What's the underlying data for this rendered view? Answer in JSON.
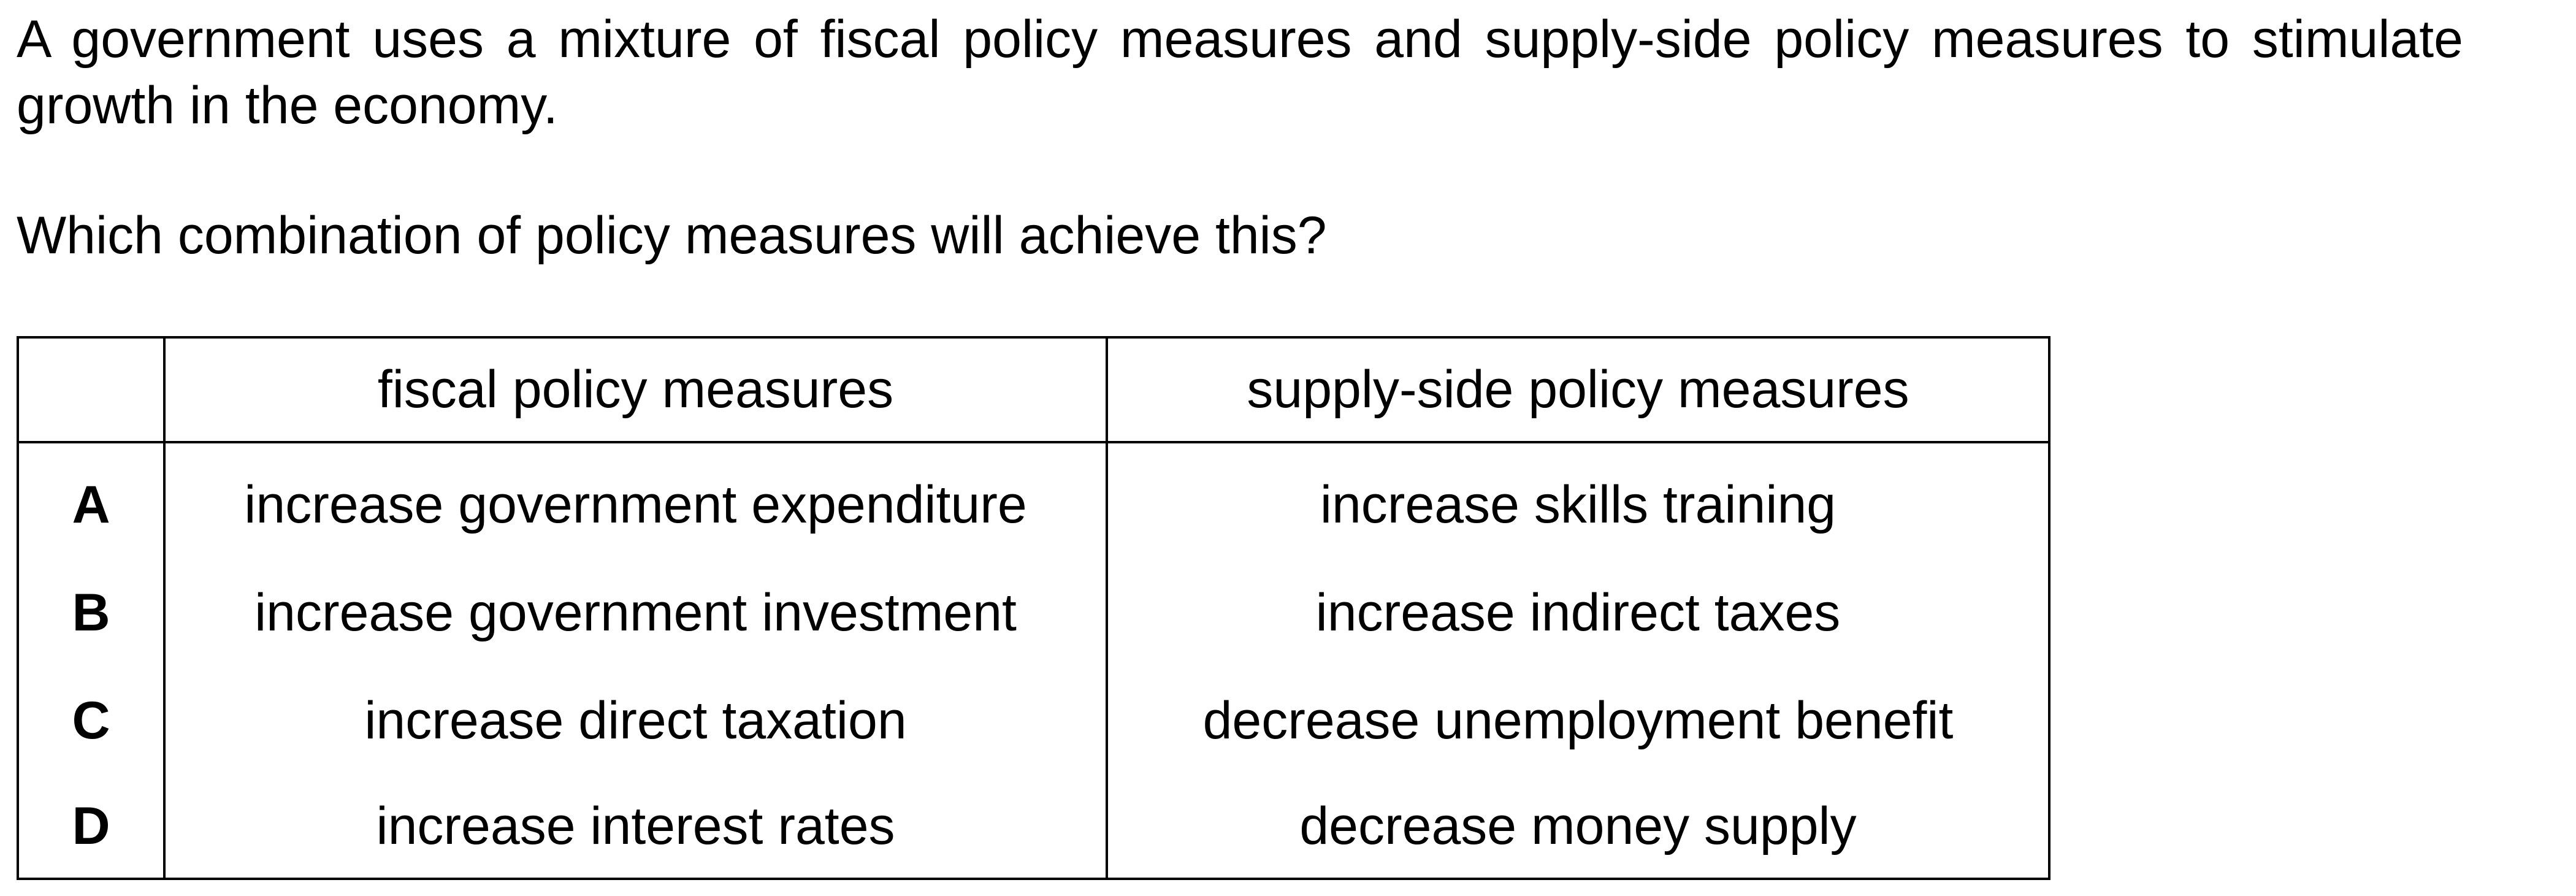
{
  "question": {
    "stem": "A government uses a mixture of fiscal policy measures and supply-side policy measures to stimulate growth in the economy.",
    "prompt": "Which combination of policy measures will achieve this?"
  },
  "table": {
    "headers": {
      "letter": "",
      "fiscal": "fiscal policy measures",
      "supply": "supply-side policy measures"
    },
    "rows": [
      {
        "letter": "A",
        "fiscal": "increase government expenditure",
        "supply": "increase skills training"
      },
      {
        "letter": "B",
        "fiscal": "increase government investment",
        "supply": "increase indirect taxes"
      },
      {
        "letter": "C",
        "fiscal": "increase direct taxation",
        "supply": "decrease unemployment benefit"
      },
      {
        "letter": "D",
        "fiscal": "increase interest rates",
        "supply": "decrease money supply"
      }
    ]
  }
}
